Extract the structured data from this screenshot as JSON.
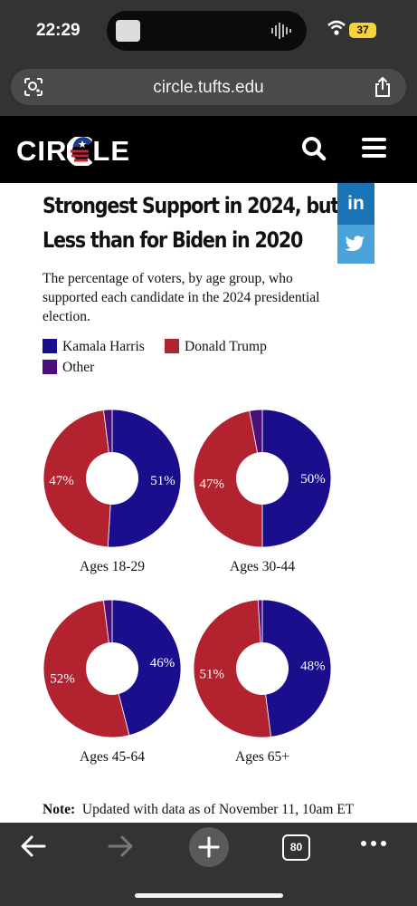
{
  "status_bar": {
    "time": "22:29",
    "battery": "37"
  },
  "browser": {
    "url": "circle.tufts.edu",
    "tab_count": "80"
  },
  "site": {
    "logo_left": "CIR",
    "logo_right": "LE"
  },
  "social": {
    "linkedin": "in"
  },
  "chart_data": {
    "type": "pie",
    "title_lines": [
      "Strongest Support in 2024, but",
      "Less than for Biden in 2020"
    ],
    "subtitle": "The percentage of voters, by age group, who supported each candidate in the 2024 presidential election.",
    "legend": [
      {
        "name": "Kamala Harris",
        "color": "#1a0e8c"
      },
      {
        "name": "Donald Trump",
        "color": "#b2232f"
      },
      {
        "name": "Other",
        "color": "#4b0f7a"
      }
    ],
    "series": [
      "Kamala Harris",
      "Donald Trump",
      "Other"
    ],
    "charts": [
      {
        "label": "Ages 18-29",
        "values": [
          51,
          47,
          2
        ],
        "value_labels": [
          "51%",
          "47%",
          ""
        ]
      },
      {
        "label": "Ages 30-44",
        "values": [
          50,
          47,
          3
        ],
        "value_labels": [
          "50%",
          "47%",
          ""
        ]
      },
      {
        "label": "Ages 45-64",
        "values": [
          46,
          52,
          2
        ],
        "value_labels": [
          "46%",
          "52%",
          ""
        ]
      },
      {
        "label": "Ages 65+",
        "values": [
          48,
          51,
          1
        ],
        "value_labels": [
          "48%",
          "51%",
          ""
        ]
      }
    ],
    "note_label": "Note:",
    "note_text": "Updated with data as of November 11, 10am ET"
  }
}
